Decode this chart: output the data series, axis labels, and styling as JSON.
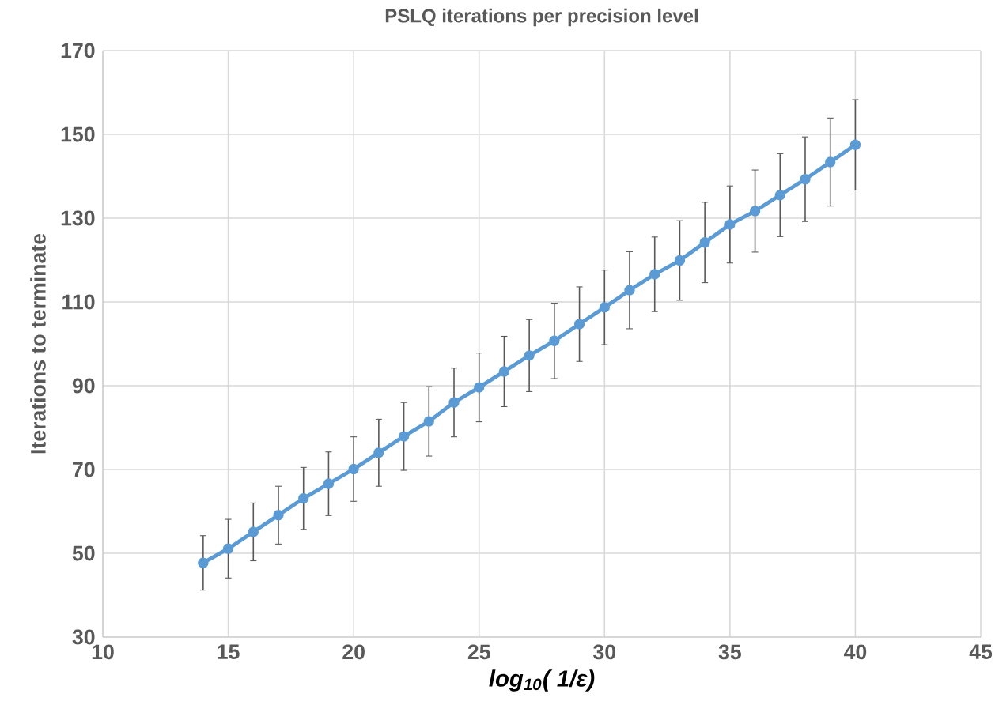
{
  "chart_data": {
    "type": "line",
    "title": "PSLQ iterations per precision level",
    "xlabel": "log$_{10}$( 1/ε)",
    "ylabel": "Iterations to terminate",
    "x": [
      14,
      15,
      16,
      17,
      18,
      19,
      20,
      21,
      22,
      23,
      24,
      25,
      26,
      27,
      28,
      29,
      30,
      31,
      32,
      33,
      34,
      35,
      36,
      37,
      38,
      39,
      40
    ],
    "series": [
      {
        "color": "#5b9bd5",
        "values": [
          47.7,
          51.1,
          55.1,
          59.1,
          63.1,
          66.6,
          70.1,
          74.0,
          77.9,
          81.5,
          86.0,
          89.6,
          93.4,
          97.2,
          100.7,
          104.7,
          108.7,
          112.8,
          116.6,
          119.9,
          124.2,
          128.5,
          131.7,
          135.5,
          139.3,
          143.4,
          147.5
        ],
        "errors": [
          6.5,
          7.0,
          6.9,
          6.9,
          7.4,
          7.6,
          7.7,
          8.0,
          8.1,
          8.3,
          8.2,
          8.2,
          8.4,
          8.6,
          9.0,
          8.9,
          8.9,
          9.2,
          8.9,
          9.5,
          9.6,
          9.2,
          9.8,
          9.9,
          10.1,
          10.5,
          10.8
        ]
      }
    ],
    "xlim": [
      10,
      45
    ],
    "xticks": [
      10,
      15,
      20,
      25,
      30,
      35,
      40,
      45
    ],
    "ylim": [
      30,
      170
    ],
    "yticks": [
      30,
      50,
      70,
      90,
      110,
      130,
      150,
      170
    ],
    "grid": true,
    "marker": "circle",
    "line_style": "solid"
  }
}
